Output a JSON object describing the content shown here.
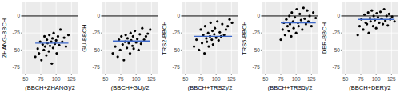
{
  "chart_data": [
    {
      "type": "scatter",
      "x_label": "(BBCH+ZHANG)/2",
      "y_label": "ZHANG-BBCH",
      "color": "#000000",
      "grid": true,
      "xlim": [
        45,
        135
      ],
      "ylim": [
        -85,
        20
      ],
      "xticks": [
        50,
        75,
        100,
        125
      ],
      "yticks": [
        -75,
        -50,
        -25,
        0
      ],
      "reference_line": 0,
      "mean": -40,
      "x": [
        66,
        70,
        72,
        74,
        76,
        78,
        80,
        81,
        82,
        84,
        85,
        86,
        88,
        89,
        90,
        92,
        93,
        94,
        95,
        96,
        98,
        100,
        101,
        103,
        105,
        107,
        110,
        113,
        116,
        120
      ],
      "values": [
        -60,
        -48,
        -55,
        -38,
        -65,
        -42,
        -50,
        -30,
        -45,
        -58,
        -35,
        -40,
        -52,
        -28,
        -44,
        -38,
        -70,
        -33,
        -47,
        -25,
        -41,
        -36,
        -55,
        -30,
        -43,
        -20,
        -38,
        -32,
        -45,
        -28
      ]
    },
    {
      "type": "scatter",
      "x_label": "(BBCH+GU)/2",
      "y_label": "GU-BBCH",
      "color": "#000000",
      "grid": true,
      "xlim": [
        45,
        135
      ],
      "ylim": [
        -85,
        20
      ],
      "xticks": [
        50,
        75,
        100,
        125
      ],
      "yticks": [
        -75,
        -50,
        -25,
        0
      ],
      "reference_line": 0,
      "mean": -37,
      "x": [
        62,
        66,
        70,
        72,
        74,
        76,
        78,
        80,
        82,
        83,
        85,
        86,
        88,
        90,
        91,
        92,
        94,
        95,
        96,
        98,
        100,
        102,
        104,
        106,
        108,
        110,
        113,
        116,
        119,
        123
      ],
      "values": [
        -55,
        -45,
        -60,
        -35,
        -50,
        -30,
        -42,
        -65,
        -38,
        -28,
        -47,
        -33,
        -40,
        -55,
        -25,
        -36,
        -44,
        -30,
        -48,
        -22,
        -39,
        -34,
        -50,
        -27,
        -41,
        -18,
        -35,
        -30,
        -26,
        -20
      ]
    },
    {
      "type": "scatter",
      "x_label": "(BBCH+TRS2)/2",
      "y_label": "TRS2-BBCH",
      "color": "#000000",
      "grid": true,
      "xlim": [
        45,
        135
      ],
      "ylim": [
        -85,
        20
      ],
      "xticks": [
        50,
        75,
        100,
        125
      ],
      "yticks": [
        -75,
        -50,
        -25,
        0
      ],
      "reference_line": 0,
      "mean": -30,
      "x": [
        64,
        68,
        72,
        75,
        77,
        79,
        81,
        82,
        84,
        85,
        87,
        88,
        90,
        91,
        93,
        94,
        95,
        97,
        98,
        100,
        102,
        104,
        106,
        108,
        110,
        113,
        116,
        119,
        122,
        126
      ],
      "values": [
        -45,
        -35,
        -50,
        -20,
        -40,
        -28,
        -55,
        -15,
        -33,
        -38,
        -25,
        -45,
        -30,
        -10,
        -35,
        -22,
        -42,
        -27,
        -18,
        -32,
        -8,
        -36,
        -24,
        -30,
        -12,
        -28,
        -20,
        -15,
        -5,
        -10
      ]
    },
    {
      "type": "scatter",
      "x_label": "(BBCH+TRS5)/2",
      "y_label": "TRS5-BBCH",
      "color": "#000000",
      "grid": true,
      "xlim": [
        45,
        135
      ],
      "ylim": [
        -85,
        20
      ],
      "xticks": [
        50,
        75,
        100,
        125
      ],
      "yticks": [
        -75,
        -50,
        -25,
        0
      ],
      "reference_line": 0,
      "mean": -10,
      "x": [
        75,
        78,
        80,
        82,
        84,
        86,
        88,
        89,
        90,
        92,
        93,
        95,
        96,
        98,
        100,
        101,
        103,
        104,
        106,
        108,
        110,
        112,
        114,
        116,
        118,
        120,
        122,
        125,
        128,
        132
      ],
      "values": [
        -35,
        -20,
        -10,
        -28,
        -5,
        -15,
        -22,
        0,
        -12,
        -30,
        5,
        -8,
        -18,
        -2,
        -25,
        10,
        -10,
        -15,
        3,
        -6,
        -20,
        12,
        -4,
        -12,
        8,
        -8,
        0,
        -15,
        5,
        -3
      ]
    },
    {
      "type": "scatter",
      "x_label": "(BBCH+DER)/2",
      "y_label": "DER-BBCH",
      "color": "#000000",
      "grid": true,
      "xlim": [
        45,
        135
      ],
      "ylim": [
        -85,
        20
      ],
      "xticks": [
        50,
        75,
        100,
        125
      ],
      "yticks": [
        -75,
        -50,
        -25,
        0
      ],
      "reference_line": 0,
      "mean": -5,
      "x": [
        70,
        73,
        76,
        79,
        81,
        83,
        85,
        87,
        88,
        90,
        91,
        93,
        95,
        96,
        98,
        100,
        101,
        103,
        105,
        107,
        109,
        111,
        113,
        115,
        117,
        119,
        121,
        123,
        126,
        130
      ],
      "values": [
        -28,
        -15,
        -5,
        -20,
        2,
        -10,
        -12,
        5,
        -25,
        -3,
        -8,
        8,
        -15,
        0,
        -6,
        -18,
        4,
        -2,
        -10,
        6,
        -4,
        -12,
        10,
        -7,
        0,
        -14,
        3,
        -5,
        -1,
        -8
      ]
    }
  ]
}
